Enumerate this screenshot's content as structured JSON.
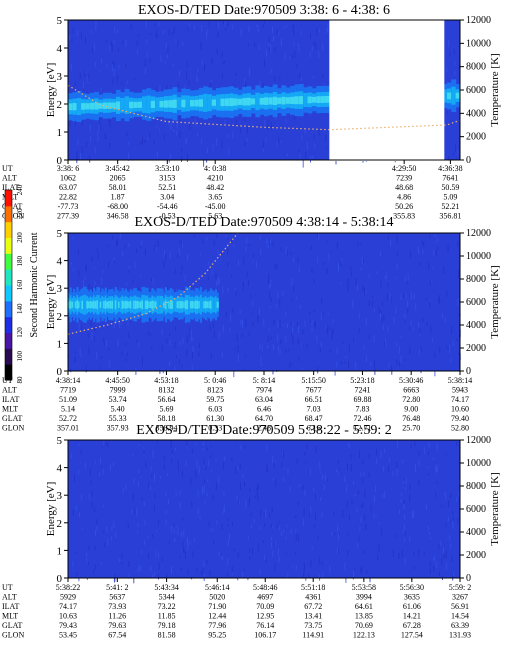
{
  "chart_data": [
    {
      "type": "heatmap",
      "title": "EXOS-D/TED   Date:970509  3:38: 6 - 4:38: 6",
      "ylabel_left": "Energy [eV]",
      "ylabel_right": "Temperature [K]",
      "ylim": [
        0,
        5
      ],
      "yticks": [
        0,
        1,
        2,
        3,
        4,
        5
      ],
      "ylim_right": [
        0,
        12000
      ],
      "yticks_right": [
        0,
        2000,
        4000,
        6000,
        8000,
        10000,
        12000
      ],
      "data_gaps_minutes": [
        [
          40,
          57.6
        ]
      ],
      "band": {
        "center_eV": [
          1.9,
          2.3
        ],
        "spread_eV": 0.5
      },
      "temperature_trend_K": [
        [
          0,
          6400
        ],
        [
          5,
          4700
        ],
        [
          15,
          3300
        ],
        [
          30,
          2800
        ],
        [
          40,
          2600
        ],
        [
          58,
          3000
        ],
        [
          60,
          3400
        ]
      ],
      "table": {
        "row_labels": [
          "UT",
          "ALT",
          "ILAT",
          "MLT",
          "GLAT",
          "GLON"
        ],
        "columns": [
          {
            "minute": 0.0,
            "values": [
              "3:38: 6",
              "1062",
              "63.07",
              "22.82",
              "-77.73",
              "277.39"
            ]
          },
          {
            "minute": 7.6,
            "values": [
              "3:45:42",
              "2065",
              "58.01",
              "1.87",
              "-68.00",
              "346.58"
            ]
          },
          {
            "minute": 15.2,
            "values": [
              "3:53:10",
              "3153",
              "52.51",
              "3.04",
              "-54.46",
              "-0.53"
            ]
          },
          {
            "minute": 22.53,
            "values": [
              "4: 0:38",
              "4210",
              "48.42",
              "3.65",
              "-45.00",
              "5.63"
            ]
          },
          {
            "minute": 51.45,
            "values": [
              "4:29:50",
              "7239",
              "48.68",
              "4.86",
              "50.26",
              "355.83"
            ]
          },
          {
            "minute": 58.53,
            "values": [
              "4:36:38",
              "7641",
              "50.59",
              "5.09",
              "52.21",
              "356.81"
            ]
          }
        ]
      }
    },
    {
      "type": "heatmap",
      "title": "EXOS-D/TED   Date:970509  4:38:14 - 5:38:14",
      "ylabel_left": "Energy [eV]",
      "ylabel_right": "Temperature [K]",
      "ylim": [
        0,
        5
      ],
      "yticks": [
        0,
        1,
        2,
        3,
        4,
        5
      ],
      "ylim_right": [
        0,
        12000
      ],
      "yticks_right": [
        0,
        2000,
        4000,
        6000,
        8000,
        10000,
        12000
      ],
      "data_gaps_minutes": [],
      "band": {
        "center_eV": [
          2.4,
          2.4
        ],
        "spread_eV": 0.55,
        "ends_minute": 23
      },
      "temperature_trend_K": [
        [
          0,
          3200
        ],
        [
          6,
          4000
        ],
        [
          12,
          5000
        ],
        [
          17,
          6500
        ],
        [
          21,
          8500
        ],
        [
          26,
          12000
        ]
      ],
      "table": {
        "row_labels": [
          "UT",
          "ALT",
          "ILAT",
          "MLT",
          "GLAT",
          "GLON"
        ],
        "columns": [
          {
            "minute": 0.0,
            "values": [
              "4:38:14",
              "7719",
              "51.09",
              "5.14",
              "52.72",
              "357.01"
            ]
          },
          {
            "minute": 7.6,
            "values": [
              "4:45:50",
              "7999",
              "53.74",
              "5.40",
              "55.33",
              "357.93"
            ]
          },
          {
            "minute": 15.07,
            "values": [
              "4:53:18",
              "8132",
              "56.64",
              "5.69",
              "58.18",
              "358.94"
            ]
          },
          {
            "minute": 22.53,
            "values": [
              "5: 0:46",
              "8123",
              "59.75",
              "6.03",
              "61.30",
              "0.33"
            ]
          },
          {
            "minute": 30.0,
            "values": [
              "5: 8:14",
              "7974",
              "63.04",
              "6.46",
              "64.70",
              "2.48"
            ]
          },
          {
            "minute": 37.6,
            "values": [
              "5:15:50",
              "7677",
              "66.51",
              "7.03",
              "68.47",
              "6.16"
            ]
          },
          {
            "minute": 45.07,
            "values": [
              "5:23:18",
              "7241",
              "69.88",
              "7.83",
              "72.46",
              "12.71"
            ]
          },
          {
            "minute": 52.53,
            "values": [
              "5:30:46",
              "6663",
              "72.80",
              "9.00",
              "76.48",
              "25.70"
            ]
          },
          {
            "minute": 60.0,
            "values": [
              "5:38:14",
              "5943",
              "74.17",
              "10.60",
              "79.40",
              "52.80"
            ]
          }
        ]
      }
    },
    {
      "type": "heatmap",
      "title": "EXOS-D/TED   Date:970509  5:38:22 - 5:59: 2",
      "ylabel_left": "Energy [eV]",
      "ylabel_right": "Temperature [K]",
      "ylim": [
        0,
        5
      ],
      "yticks": [
        0,
        1,
        2,
        3,
        4,
        5
      ],
      "ylim_right": [
        0,
        12000
      ],
      "yticks_right": [
        0,
        2000,
        4000,
        6000,
        8000,
        10000,
        12000
      ],
      "data_gaps_minutes": [],
      "band": null,
      "temperature_trend_K": [],
      "table": {
        "row_labels": [
          "UT",
          "ALT",
          "ILAT",
          "MLT",
          "GLAT",
          "GLON"
        ],
        "columns": [
          {
            "minute": 0.0,
            "values": [
              "5:38:22",
              "5929",
              "74.17",
              "10.63",
              "79.43",
              "53.45"
            ]
          },
          {
            "minute": 2.6,
            "values": [
              "5:41: 2",
              "5637",
              "73.93",
              "11.26",
              "79.63",
              "67.54"
            ]
          },
          {
            "minute": 5.2,
            "values": [
              "5:43:34",
              "5344",
              "73.22",
              "11.85",
              "79.18",
              "81.58"
            ]
          },
          {
            "minute": 7.87,
            "values": [
              "5:46:14",
              "5020",
              "71.90",
              "12.44",
              "77.96",
              "95.25"
            ]
          },
          {
            "minute": 10.4,
            "values": [
              "5:48:46",
              "4697",
              "70.09",
              "12.95",
              "76.14",
              "106.17"
            ]
          },
          {
            "minute": 12.93,
            "values": [
              "5:51:18",
              "4361",
              "67.72",
              "13.41",
              "73.75",
              "114.91"
            ]
          },
          {
            "minute": 15.6,
            "values": [
              "5:53:58",
              "3994",
              "64.61",
              "13.85",
              "70.69",
              "122.13"
            ]
          },
          {
            "minute": 18.13,
            "values": [
              "5:56:30",
              "3635",
              "61.06",
              "14.21",
              "67.28",
              "127.54"
            ]
          },
          {
            "minute": 20.67,
            "values": [
              "5:59: 2",
              "3267",
              "56.91",
              "14.54",
              "63.39",
              "131.93"
            ]
          }
        ]
      }
    }
  ],
  "colorbar": {
    "label": "Second Harmonic Current",
    "range": [
      80,
      240
    ],
    "ticks": [
      80,
      100,
      120,
      140,
      160,
      180,
      200,
      220,
      240
    ],
    "colors": [
      "#000000",
      "#2a0a50",
      "#4a16a8",
      "#1f2fe8",
      "#1f70ff",
      "#10c8ff",
      "#1fe8c0",
      "#40ff40",
      "#e8ff10",
      "#ffd000",
      "#ff7000",
      "#ff1000"
    ]
  }
}
